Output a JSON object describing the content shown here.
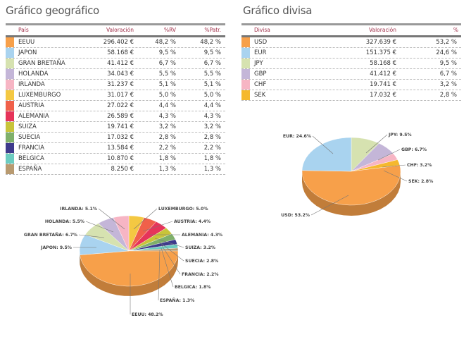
{
  "geo": {
    "title": "Gráfico geográfico",
    "headers": [
      "País",
      "Valoración",
      "%RV",
      "%Patr."
    ],
    "rows": [
      {
        "name": "EEUU",
        "value": "296.402 €",
        "rv": "48,2 %",
        "patr": "48,2 %",
        "color": "#f7a04a"
      },
      {
        "name": "JAPON",
        "value": "58.168 €",
        "rv": "9,5 %",
        "patr": "9,5 %",
        "color": "#a9d3ef"
      },
      {
        "name": "GRAN BRETAÑA",
        "value": "41.412 €",
        "rv": "6,7 %",
        "patr": "6,7 %",
        "color": "#d6e2b0"
      },
      {
        "name": "HOLANDA",
        "value": "34.043 €",
        "rv": "5,5 %",
        "patr": "5,5 %",
        "color": "#c4b6d8"
      },
      {
        "name": "IRLANDA",
        "value": "31.237 €",
        "rv": "5,1 %",
        "patr": "5,1 %",
        "color": "#f7b5c4"
      },
      {
        "name": "LUXEMBURGO",
        "value": "31.017 €",
        "rv": "5,0 %",
        "patr": "5,0 %",
        "color": "#f4c842"
      },
      {
        "name": "AUSTRIA",
        "value": "27.022 €",
        "rv": "4,4 %",
        "patr": "4,4 %",
        "color": "#f0604a"
      },
      {
        "name": "ALEMANIA",
        "value": "26.589 €",
        "rv": "4,3 %",
        "patr": "4,3 %",
        "color": "#e6345a"
      },
      {
        "name": "SUIZA",
        "value": "19.741 €",
        "rv": "3,2 %",
        "patr": "3,2 %",
        "color": "#c8c43a"
      },
      {
        "name": "SUECIA",
        "value": "17.032 €",
        "rv": "2,8 %",
        "patr": "2,8 %",
        "color": "#7fb06a"
      },
      {
        "name": "FRANCIA",
        "value": "13.584 €",
        "rv": "2,2 %",
        "patr": "2,2 %",
        "color": "#3e3a8c"
      },
      {
        "name": "BELGICA",
        "value": "10.870 €",
        "rv": "1,8 %",
        "patr": "1,8 %",
        "color": "#6cccc0"
      },
      {
        "name": "ESPAÑA",
        "value": "8.250 €",
        "rv": "1,3 %",
        "patr": "1,3 %",
        "color": "#b89a70"
      }
    ]
  },
  "div": {
    "title": "Gráfico divisa",
    "headers": [
      "Divisa",
      "Valoración",
      "%"
    ],
    "rows": [
      {
        "name": "USD",
        "value": "327.639 €",
        "pct": "53,2 %",
        "color": "#f7a04a"
      },
      {
        "name": "EUR",
        "value": "151.375 €",
        "pct": "24,6 %",
        "color": "#a9d3ef"
      },
      {
        "name": "JPY",
        "value": "58.168 €",
        "pct": "9,5 %",
        "color": "#d6e2b0"
      },
      {
        "name": "GBP",
        "value": "41.412 €",
        "pct": "6,7 %",
        "color": "#c4b6d8"
      },
      {
        "name": "CHF",
        "value": "19.741 €",
        "pct": "3,2 %",
        "color": "#f7b5c4"
      },
      {
        "name": "SEK",
        "value": "17.032 €",
        "pct": "2,8 %",
        "color": "#f5b82e"
      }
    ]
  },
  "chart_data": [
    {
      "type": "pie",
      "categories": [
        "LUXEMBURGO",
        "AUSTRIA",
        "ALEMANIA",
        "SUIZA",
        "SUECIA",
        "FRANCIA",
        "BELGICA",
        "ESPAÑA",
        "EEUU",
        "JAPON",
        "GRAN BRETAÑA",
        "HOLANDA",
        "IRLANDA"
      ],
      "values": [
        5.0,
        4.4,
        4.3,
        3.2,
        2.8,
        2.2,
        1.8,
        1.3,
        48.2,
        9.5,
        6.7,
        5.5,
        5.1
      ],
      "labels": [
        "LUXEMBURGO: 5.0%",
        "AUSTRIA: 4.4%",
        "ALEMANIA: 4.3%",
        "SUIZA: 3.2%",
        "SUECIA: 2.8%",
        "FRANCIA: 2.2%",
        "BELGICA: 1.8%",
        "ESPAÑA: 1.3%",
        "EEUU: 48.2%",
        "JAPON: 9.5%",
        "GRAN BRETAÑA: 6.7%",
        "HOLANDA: 5.5%",
        "IRLANDA: 5.1%"
      ],
      "colors": [
        "#f4c842",
        "#f0604a",
        "#e6345a",
        "#c8c43a",
        "#7fb06a",
        "#3e3a8c",
        "#6cccc0",
        "#b89a70",
        "#f7a04a",
        "#a9d3ef",
        "#d6e2b0",
        "#c4b6d8",
        "#f7b5c4"
      ]
    },
    {
      "type": "pie",
      "categories": [
        "JPY",
        "GBP",
        "CHF",
        "SEK",
        "USD",
        "EUR"
      ],
      "values": [
        9.5,
        6.7,
        3.2,
        2.8,
        53.2,
        24.6
      ],
      "labels": [
        "JPY: 9.5%",
        "GBP: 6.7%",
        "CHF: 3.2%",
        "SEK: 2.8%",
        "USD: 53.2%",
        "EUR: 24.6%"
      ],
      "colors": [
        "#d6e2b0",
        "#c4b6d8",
        "#f7b5c4",
        "#f5b82e",
        "#f7a04a",
        "#a9d3ef"
      ]
    }
  ]
}
